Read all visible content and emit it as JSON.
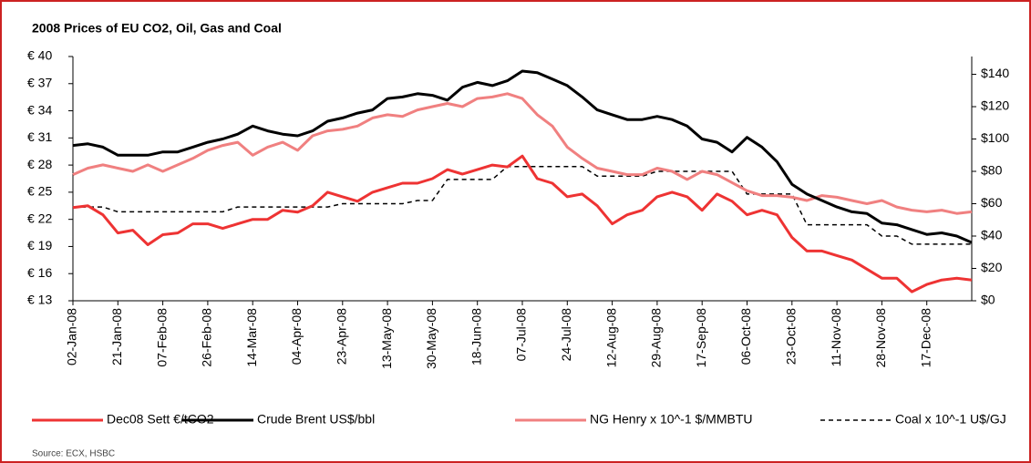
{
  "chart_data": {
    "type": "line",
    "title": "2008 Prices of EU CO2, Oil, Gas and Coal",
    "source": "Source: ECX, HSBC",
    "categories": [
      "02-Jan-08",
      null,
      null,
      "21-Jan-08",
      null,
      null,
      "07-Feb-08",
      null,
      null,
      "26-Feb-08",
      null,
      null,
      "14-Mar-08",
      null,
      null,
      "04-Apr-08",
      null,
      null,
      "23-Apr-08",
      null,
      null,
      "13-May-08",
      null,
      null,
      "30-May-08",
      null,
      null,
      "18-Jun-08",
      null,
      null,
      "07-Jul-08",
      null,
      null,
      "24-Jul-08",
      null,
      null,
      "12-Aug-08",
      null,
      null,
      "29-Aug-08",
      null,
      null,
      "17-Sep-08",
      null,
      null,
      "06-Oct-08",
      null,
      null,
      "23-Oct-08",
      null,
      null,
      "11-Nov-08",
      null,
      null,
      "28-Nov-08",
      null,
      null,
      "17-Dec-08",
      null,
      null,
      null
    ],
    "series": [
      {
        "name": "Dec08 Sett €/tCO2",
        "color": "#ee3333",
        "axis": "y",
        "line_style": "solid",
        "values": [
          23.3,
          23.5,
          22.5,
          20.5,
          20.8,
          19.2,
          20.3,
          20.5,
          21.5,
          21.5,
          21.0,
          21.5,
          22.0,
          22.0,
          23.0,
          22.8,
          23.5,
          25.0,
          24.5,
          24.0,
          25.0,
          25.5,
          26.0,
          26.0,
          26.5,
          27.5,
          27.0,
          27.5,
          28.0,
          27.8,
          29.0,
          26.5,
          26.0,
          24.5,
          24.8,
          23.5,
          21.5,
          22.5,
          23.0,
          24.5,
          25.0,
          24.5,
          23.0,
          24.8,
          24.0,
          22.5,
          23.0,
          22.5,
          20.0,
          18.5,
          18.5,
          18.0,
          17.5,
          16.5,
          15.5,
          15.5,
          14.0,
          14.8,
          15.3,
          15.5,
          15.3
        ]
      },
      {
        "name": "Crude Brent US$/bbl",
        "color": "#000000",
        "axis": "y2",
        "line_style": "solid",
        "values": [
          96,
          97,
          95,
          90,
          90,
          90,
          92,
          92,
          95,
          98,
          100,
          103,
          108,
          105,
          103,
          102,
          105,
          111,
          113,
          116,
          118,
          125,
          126,
          128,
          127,
          124,
          132,
          135,
          133,
          136,
          142,
          141,
          137,
          133,
          126,
          118,
          115,
          112,
          112,
          114,
          112,
          108,
          100,
          98,
          92,
          101,
          95,
          86,
          72,
          66,
          62,
          58,
          55,
          54,
          48,
          47,
          44,
          41,
          42,
          40,
          36
        ]
      },
      {
        "name": "NG Henry  x 10^-1 $/MMBTU",
        "color": "#f08080",
        "axis": "y2",
        "line_style": "solid",
        "values": [
          78,
          82,
          84,
          82,
          80,
          84,
          80,
          84,
          88,
          93,
          96,
          98,
          90,
          95,
          98,
          93,
          102,
          105,
          106,
          108,
          113,
          115,
          114,
          118,
          120,
          122,
          120,
          125,
          126,
          128,
          125,
          115,
          108,
          95,
          88,
          82,
          80,
          78,
          78,
          82,
          80,
          75,
          80,
          78,
          73,
          68,
          65,
          65,
          64,
          62,
          65,
          64,
          62,
          60,
          62,
          58,
          56,
          55,
          56,
          54,
          55
        ]
      },
      {
        "name": "Coal x 10^-1 U$/GJ",
        "color": "#000000",
        "axis": "y2",
        "line_style": "dashed",
        "values": [
          58,
          58,
          58,
          55,
          55,
          55,
          55,
          55,
          55,
          55,
          55,
          58,
          58,
          58,
          58,
          58,
          58,
          58,
          60,
          60,
          60,
          60,
          60,
          62,
          62,
          75,
          75,
          75,
          75,
          83,
          83,
          83,
          83,
          83,
          83,
          77,
          77,
          77,
          77,
          80,
          80,
          80,
          80,
          80,
          80,
          66,
          66,
          66,
          66,
          47,
          47,
          47,
          47,
          47,
          40,
          40,
          35,
          35,
          35,
          35,
          35
        ]
      }
    ],
    "ylim": [
      13,
      40
    ],
    "yticks": [
      {
        "value": 13,
        "label": "€ 13"
      },
      {
        "value": 16,
        "label": "€ 16"
      },
      {
        "value": 19,
        "label": "€ 19"
      },
      {
        "value": 22,
        "label": "€ 22"
      },
      {
        "value": 25,
        "label": "€ 25"
      },
      {
        "value": 28,
        "label": "€ 28"
      },
      {
        "value": 31,
        "label": "€ 31"
      },
      {
        "value": 34,
        "label": "€ 34"
      },
      {
        "value": 37,
        "label": "€ 37"
      },
      {
        "value": 40,
        "label": "€ 40"
      }
    ],
    "y2lim": [
      0,
      151
    ],
    "y2ticks": [
      {
        "value": 0,
        "label": "$0"
      },
      {
        "value": 20,
        "label": "$20"
      },
      {
        "value": 40,
        "label": "$40"
      },
      {
        "value": 60,
        "label": "$60"
      },
      {
        "value": 80,
        "label": "$80"
      },
      {
        "value": 100,
        "label": "$100"
      },
      {
        "value": 120,
        "label": "$120"
      },
      {
        "value": 140,
        "label": "$140"
      }
    ],
    "legend": "bottom"
  }
}
